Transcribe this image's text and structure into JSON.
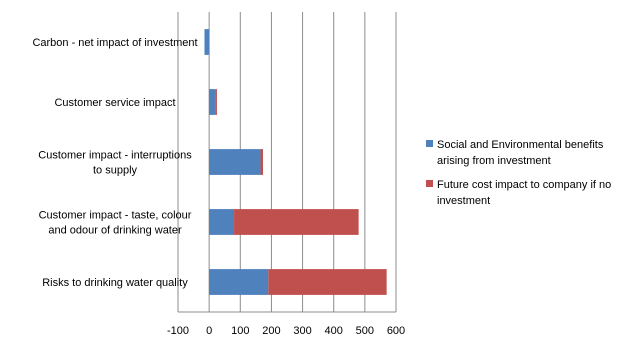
{
  "chart_data": {
    "type": "bar",
    "orientation": "horizontal",
    "stacked": true,
    "categories": [
      "Carbon - net impact of investment",
      "Customer service impact",
      "Customer impact - interruptions to supply",
      "Customer impact - taste, colour and odour of drinking water",
      "Risks to drinking water quality"
    ],
    "category_lines": [
      [
        "Carbon - net impact of investment"
      ],
      [
        "Customer service impact"
      ],
      [
        "Customer impact - interruptions",
        "to supply"
      ],
      [
        "Customer impact - taste, colour",
        "and odour of drinking water"
      ],
      [
        "Risks to drinking water quality"
      ]
    ],
    "series": [
      {
        "name": "Social and Environmental benefits arising from investment",
        "legend_lines": [
          "Social and Environmental benefits",
          "arising from investment"
        ],
        "color": "#4f81bd",
        "values": [
          -15,
          20,
          165,
          80,
          190
        ]
      },
      {
        "name": "Future cost impact to company if no investment",
        "legend_lines": [
          "Future cost impact to company if no",
          "investment"
        ],
        "color": "#c0504d",
        "values": [
          0,
          5,
          8,
          400,
          380
        ]
      }
    ],
    "xlim": [
      -100,
      600
    ],
    "xticks": [
      -100,
      0,
      100,
      200,
      300,
      400,
      500,
      600
    ],
    "grid": true,
    "legend_position": "right"
  }
}
